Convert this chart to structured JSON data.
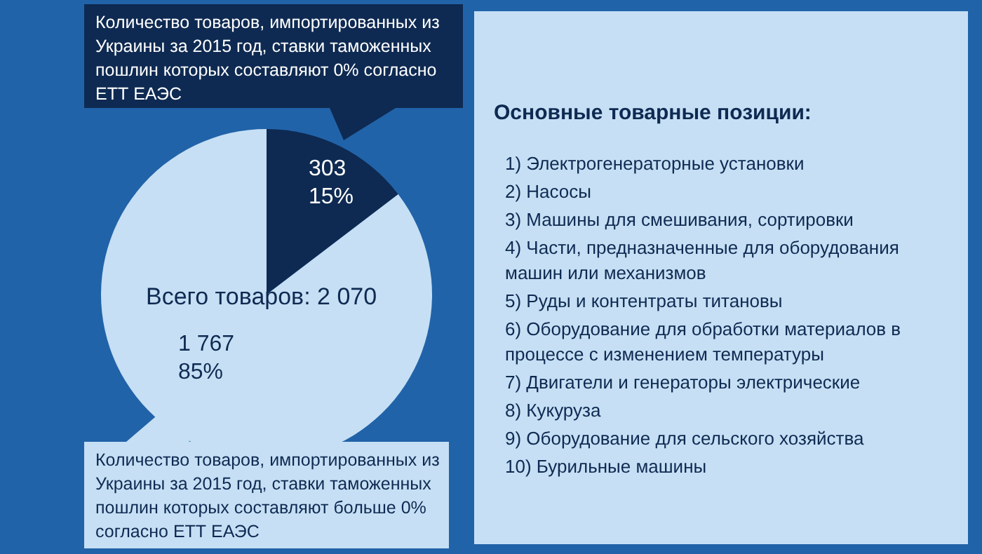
{
  "chart_data": [
    {
      "type": "pie",
      "categories": [
        "Количество товаров, импортированных из Украины за 2015 год, ставки таможенных пошлин которых составляют 0% согласно ЕТТ ЕАЭС",
        "Количество товаров, импортированных из Украины за 2015 год, ставки таможенных пошлин которых составляют больше 0% согласно ЕТТ ЕАЭС"
      ],
      "values": [
        303,
        1767
      ],
      "colors": [
        "#0e2a52",
        "#c6dff4"
      ],
      "value_labels": [
        "303\n15%",
        "1 767\n85%"
      ],
      "annotations": [
        "Всего товаров: 2 070"
      ]
    },
    {
      "type": "other",
      "title": "Основные товарные позиции:",
      "annotations": [
        "1)  Электрогенераторные установки",
        "2)  Насосы",
        "3)  Машины для смешивания, сортировки",
        "4)  Части, предназначенные для оборудования машин или механизмов",
        "5)  Руды и контентраты титановы",
        "6)  Оборудование для обработки материалов в процессе с изменением температуры",
        "7)  Двигатели и генераторы электрические",
        "8)  Кукуруза",
        "9)  Оборудование для сельского хозяйства",
        "10)  Бурильные машины"
      ]
    }
  ]
}
